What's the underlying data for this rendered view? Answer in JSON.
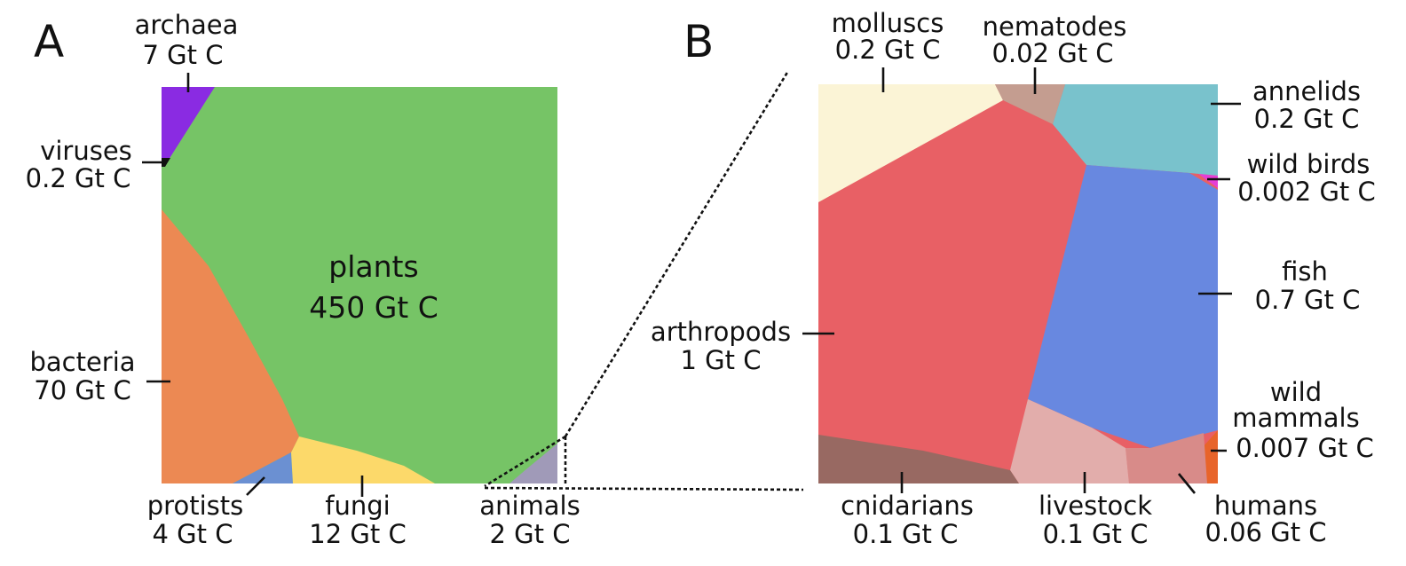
{
  "panels": {
    "a": {
      "letter": "A",
      "regions": {
        "plants": {
          "name": "plants",
          "value": "450 Gt C",
          "color": "#76c466"
        },
        "bacteria": {
          "name": "bacteria",
          "value": "70 Gt C",
          "color": "#ec8953"
        },
        "fungi": {
          "name": "fungi",
          "value": "12 Gt C",
          "color": "#fcd96a"
        },
        "archaea": {
          "name": "archaea",
          "value": "7 Gt C",
          "color": "#8a2be2"
        },
        "protists": {
          "name": "protists",
          "value": "4 Gt C",
          "color": "#6b90d2"
        },
        "animals": {
          "name": "animals",
          "value": "2 Gt C",
          "color": "#a09ab8"
        },
        "viruses": {
          "name": "viruses",
          "value": "0.2 Gt C",
          "color": "#111111"
        }
      }
    },
    "b": {
      "letter": "B",
      "regions": {
        "arthropods": {
          "name": "arthropods",
          "value": "1 Gt C",
          "color": "#e86065"
        },
        "fish": {
          "name": "fish",
          "value": "0.7 Gt C",
          "color": "#6888e0"
        },
        "molluscs": {
          "name": "molluscs",
          "value": "0.2 Gt C",
          "color": "#fbf4d6"
        },
        "annelids": {
          "name": "annelids",
          "value": "0.2 Gt C",
          "color": "#79c2cc"
        },
        "cnidarians": {
          "name": "cnidarians",
          "value": "0.1 Gt C",
          "color": "#986962"
        },
        "livestock": {
          "name": "livestock",
          "value": "0.1 Gt C",
          "color": "#e2adab"
        },
        "humans": {
          "name": "humans",
          "value": "0.06 Gt C",
          "color": "#d88b89"
        },
        "nematodes": {
          "name": "nematodes",
          "value": "0.02 Gt C",
          "color": "#c49d90"
        },
        "wild_mammals": {
          "name_line1": "wild",
          "name_line2": "mammals",
          "value": "0.007 Gt C",
          "color": "#e8642a"
        },
        "wild_birds": {
          "name": "wild birds",
          "value": "0.002 Gt C",
          "color": "#e63fd6"
        }
      }
    }
  }
}
